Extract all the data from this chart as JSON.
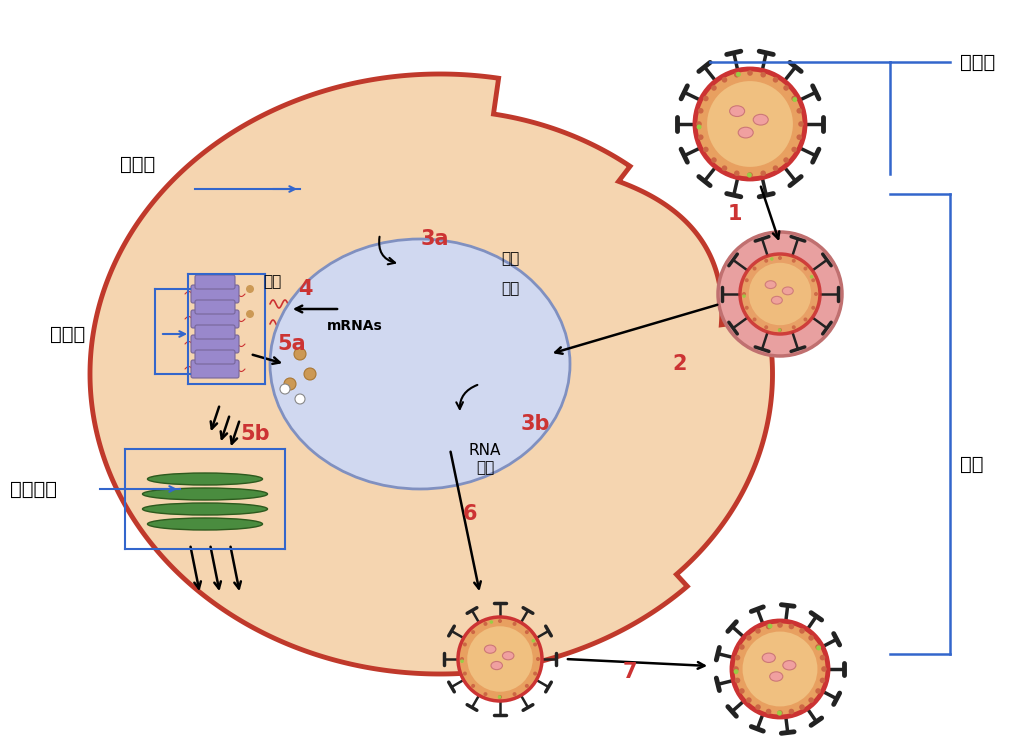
{
  "bg_color": "#ffffff",
  "cell_color": "#f5d5b0",
  "cell_border_color": "#c0392b",
  "nucleus_color": "#d0d8f0",
  "nucleus_border_color": "#8090c0",
  "virus_outer_color": "#cc3333",
  "virus_inner_color": "#e8a060",
  "spike_color": "#222222",
  "rna_color": "#cc3333",
  "ribosome_color": "#9988cc",
  "golgi_color": "#4a8c3f",
  "label_color": "#000000",
  "step_color": "#cc3333",
  "arrow_color": "#000000",
  "blue_line_color": "#3366cc",
  "annotations": {
    "binguti": "病毒体",
    "xibao": "细胞",
    "xibaohe": "细胞核",
    "hetangti": "核糖体",
    "gaoerjiti": "高尔基体",
    "step1": "1",
    "step2": "2",
    "step3a": "3a",
    "step3b": "3b",
    "step4": "4",
    "step5a": "5a",
    "step5b": "5b",
    "step6": "6",
    "step7": "7",
    "mRNAs": "mRNAs",
    "fanyi": "翻译",
    "zhuanlu": "转录",
    "jianjie": "剪接",
    "RNA_fuzhi": "RNA\n复制"
  }
}
